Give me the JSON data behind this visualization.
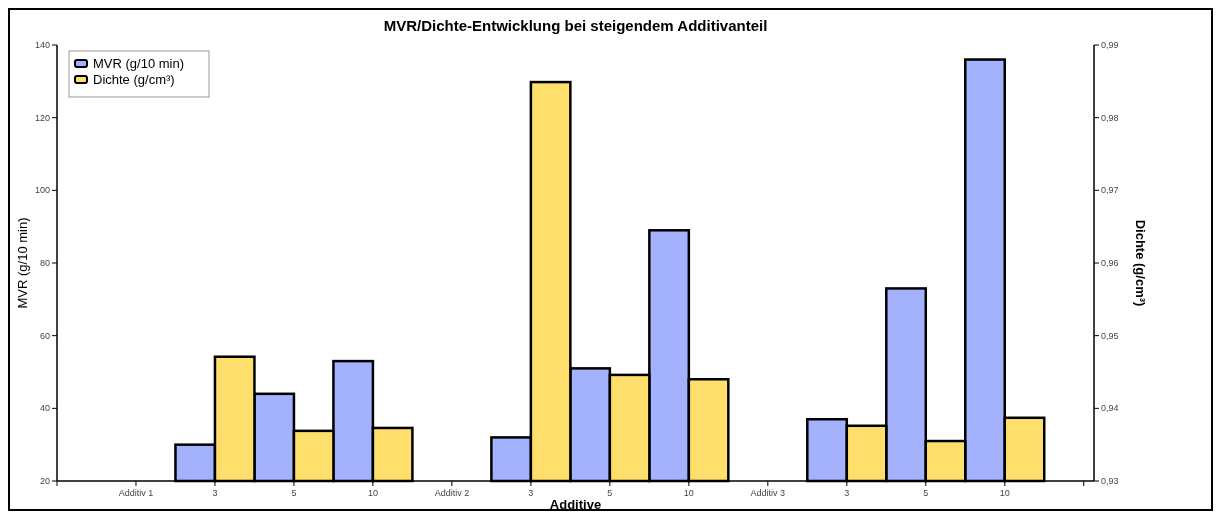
{
  "chart_data": {
    "type": "bar",
    "title": "MVR/Dichte-Entwicklung bei steigendem Additivanteil",
    "xlabel": "Additive",
    "ylabel": "MVR (g/10 min)",
    "y2label": "Dichte (g/cm³)",
    "categories": [
      "Additiv 1",
      "3",
      "5",
      "10",
      "Additiv 2",
      "3",
      "5",
      "10",
      "Additiv 3",
      "3",
      "5",
      "10",
      null
    ],
    "series": [
      {
        "name": "MVR (g/10 min)",
        "color": "#a4b1fc",
        "values": [
          null,
          30,
          44,
          53,
          null,
          32,
          51,
          89,
          null,
          37,
          73,
          136,
          null
        ]
      },
      {
        "name": "Dichte (g/cm³)",
        "color": "#ffdf6b",
        "axis": "y2",
        "values": [
          null,
          0.9471,
          0.9369,
          0.9373,
          null,
          0.9849,
          0.9446,
          0.944,
          null,
          0.9376,
          0.9355,
          0.9387,
          null
        ]
      }
    ],
    "ylim": [
      20,
      140
    ],
    "yticks": [
      20,
      40,
      60,
      80,
      100,
      120,
      140
    ],
    "y2lim": [
      0.93,
      0.99
    ],
    "y2ticks": [
      {
        "value": 0.93,
        "label": "0,93"
      },
      {
        "value": 0.94,
        "label": "0,94"
      },
      {
        "value": 0.95,
        "label": "0,95"
      },
      {
        "value": 0.96,
        "label": "0,96"
      },
      {
        "value": 0.97,
        "label": "0,97"
      },
      {
        "value": 0.98,
        "label": "0,98"
      },
      {
        "value": 0.99,
        "label": "0,99"
      }
    ],
    "legend": "top left",
    "grid": false
  }
}
